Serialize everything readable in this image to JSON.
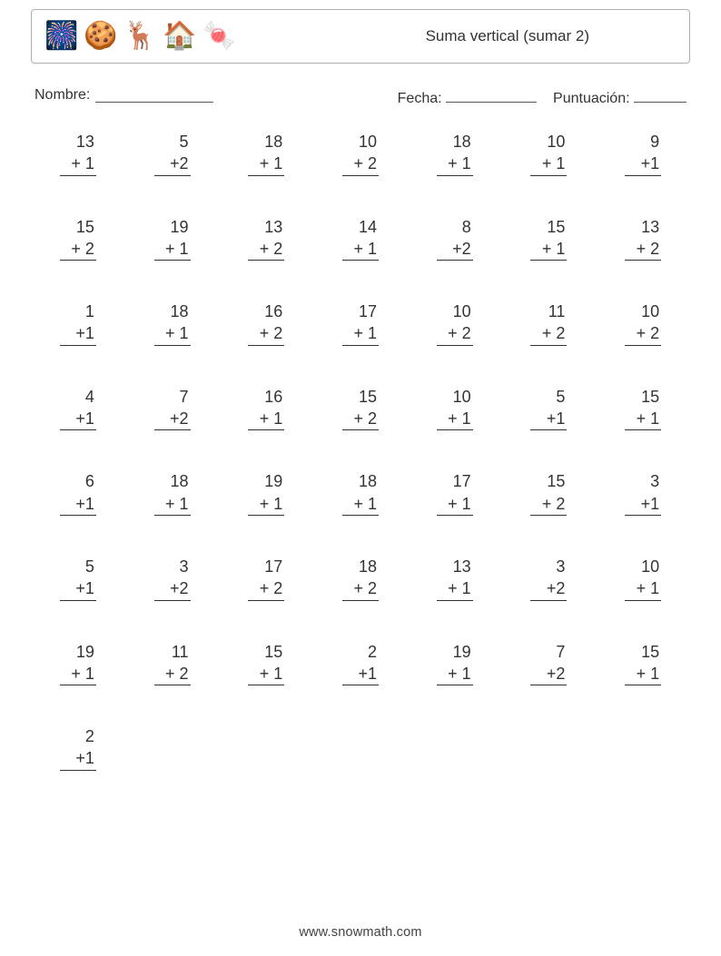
{
  "colors": {
    "text": "#333333",
    "border": "#b0b0b0",
    "background": "#ffffff",
    "line": "#333333"
  },
  "header": {
    "icons": [
      "🎆",
      "🍪",
      "🦌",
      "🏠",
      "🍬"
    ],
    "title": "Suma vertical (sumar 2)"
  },
  "meta": {
    "name_label": "Nombre:",
    "date_label": "Fecha:",
    "score_label": "Puntuación:"
  },
  "grid": {
    "columns": 7,
    "problem_fontsize": 18,
    "row_gap": 44
  },
  "problems": [
    {
      "a": "13",
      "b": "+ 1"
    },
    {
      "a": "5",
      "b": "+2"
    },
    {
      "a": "18",
      "b": "+ 1"
    },
    {
      "a": "10",
      "b": "+ 2"
    },
    {
      "a": "18",
      "b": "+ 1"
    },
    {
      "a": "10",
      "b": "+ 1"
    },
    {
      "a": "9",
      "b": "+1"
    },
    {
      "a": "15",
      "b": "+ 2"
    },
    {
      "a": "19",
      "b": "+ 1"
    },
    {
      "a": "13",
      "b": "+ 2"
    },
    {
      "a": "14",
      "b": "+ 1"
    },
    {
      "a": "8",
      "b": "+2"
    },
    {
      "a": "15",
      "b": "+ 1"
    },
    {
      "a": "13",
      "b": "+ 2"
    },
    {
      "a": "1",
      "b": "+1"
    },
    {
      "a": "18",
      "b": "+ 1"
    },
    {
      "a": "16",
      "b": "+ 2"
    },
    {
      "a": "17",
      "b": "+ 1"
    },
    {
      "a": "10",
      "b": "+ 2"
    },
    {
      "a": "11",
      "b": "+ 2"
    },
    {
      "a": "10",
      "b": "+ 2"
    },
    {
      "a": "4",
      "b": "+1"
    },
    {
      "a": "7",
      "b": "+2"
    },
    {
      "a": "16",
      "b": "+ 1"
    },
    {
      "a": "15",
      "b": "+ 2"
    },
    {
      "a": "10",
      "b": "+ 1"
    },
    {
      "a": "5",
      "b": "+1"
    },
    {
      "a": "15",
      "b": "+ 1"
    },
    {
      "a": "6",
      "b": "+1"
    },
    {
      "a": "18",
      "b": "+ 1"
    },
    {
      "a": "19",
      "b": "+ 1"
    },
    {
      "a": "18",
      "b": "+ 1"
    },
    {
      "a": "17",
      "b": "+ 1"
    },
    {
      "a": "15",
      "b": "+ 2"
    },
    {
      "a": "3",
      "b": "+1"
    },
    {
      "a": "5",
      "b": "+1"
    },
    {
      "a": "3",
      "b": "+2"
    },
    {
      "a": "17",
      "b": "+ 2"
    },
    {
      "a": "18",
      "b": "+ 2"
    },
    {
      "a": "13",
      "b": "+ 1"
    },
    {
      "a": "3",
      "b": "+2"
    },
    {
      "a": "10",
      "b": "+ 1"
    },
    {
      "a": "19",
      "b": "+ 1"
    },
    {
      "a": "11",
      "b": "+ 2"
    },
    {
      "a": "15",
      "b": "+ 1"
    },
    {
      "a": "2",
      "b": "+1"
    },
    {
      "a": "19",
      "b": "+ 1"
    },
    {
      "a": "7",
      "b": "+2"
    },
    {
      "a": "15",
      "b": "+ 1"
    },
    {
      "a": "2",
      "b": "+1"
    }
  ],
  "footer": "www.snowmath.com"
}
